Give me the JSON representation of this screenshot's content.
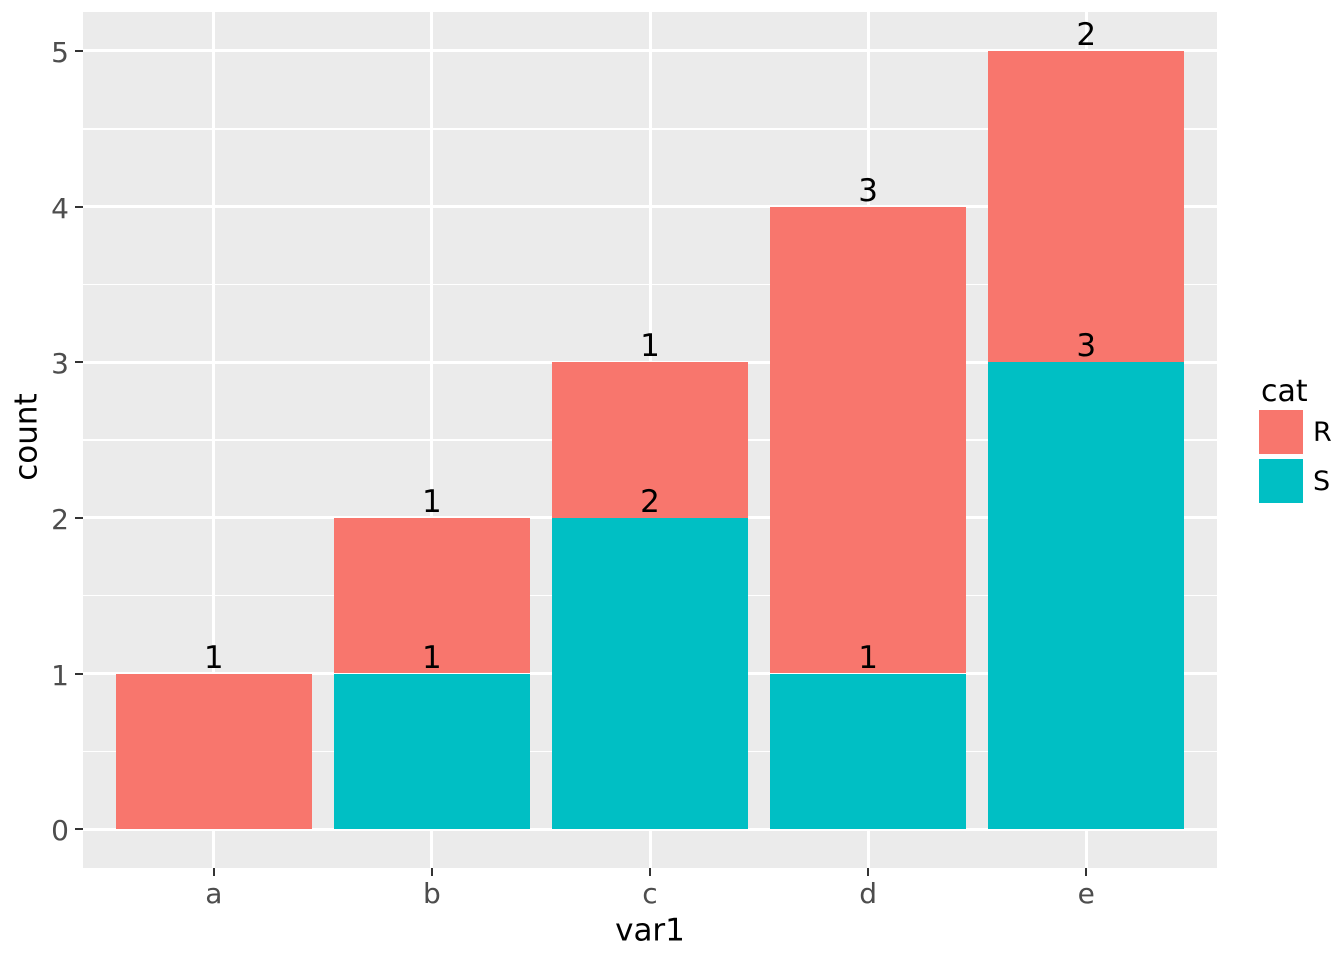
{
  "figure": {
    "background_color": "#FFFFFF",
    "panel_background_color": "#EBEBEB",
    "gridline_color": "#FFFFFF",
    "tick_mark_color": "#333333",
    "tick_label_color": "#4D4D4D",
    "text_color": "#000000"
  },
  "chart_data": {
    "type": "bar",
    "stacked": true,
    "title": "",
    "xlabel": "var1",
    "ylabel": "count",
    "categories": [
      "a",
      "b",
      "c",
      "d",
      "e"
    ],
    "series": [
      {
        "name": "S",
        "color": "#00BFC4",
        "values": [
          0,
          1,
          2,
          1,
          3
        ]
      },
      {
        "name": "R",
        "color": "#F8766D",
        "values": [
          1,
          1,
          1,
          3,
          2
        ]
      }
    ],
    "stack_order_bottom_to_top": [
      "S",
      "R"
    ],
    "totals": [
      1,
      2,
      3,
      4,
      5
    ],
    "segment_value_labels_visible": true,
    "y_ticks": [
      "0",
      "1",
      "2",
      "3",
      "4",
      "5"
    ],
    "x_ticks": [
      "a",
      "b",
      "c",
      "d",
      "e"
    ],
    "ylim": [
      -0.25,
      5.25
    ],
    "bar_width_fraction": 0.9,
    "grid": {
      "major_y": true,
      "minor_y": true,
      "major_x": true,
      "minor_x": false
    },
    "legend": {
      "title": "cat",
      "position": "right",
      "items": [
        {
          "label": "R",
          "color": "#F8766D"
        },
        {
          "label": "S",
          "color": "#00BFC4"
        }
      ]
    }
  }
}
